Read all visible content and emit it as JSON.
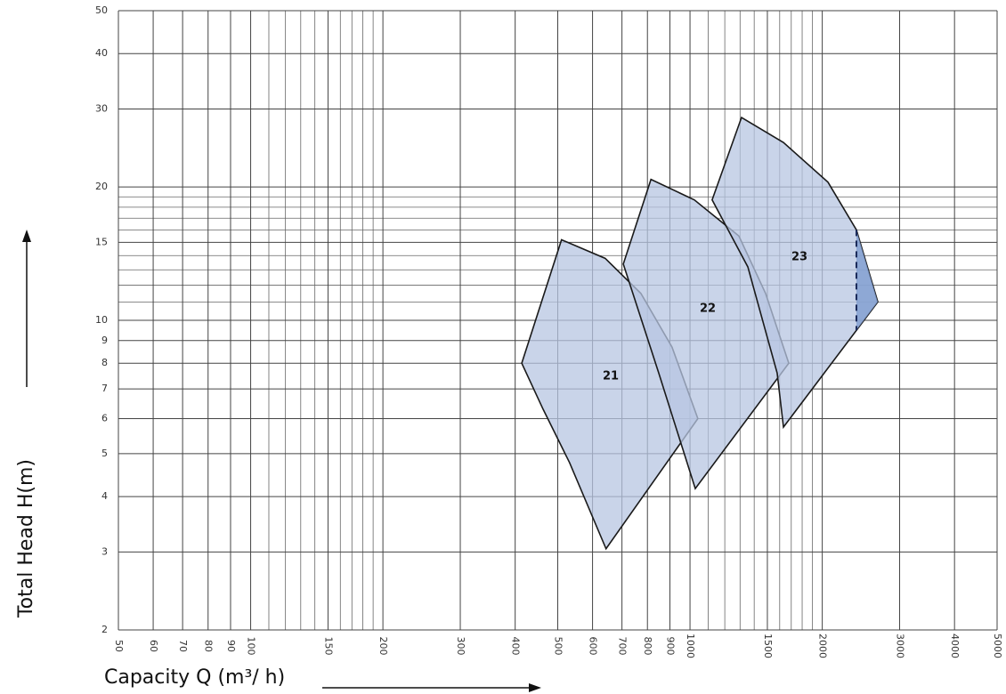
{
  "chart_data": {
    "type": "region",
    "xlabel": "Capacity Q (m³/ h)",
    "ylabel": "Total Head H(m)",
    "xlog": true,
    "ylog": true,
    "grid": true,
    "xlim": [
      50,
      5000
    ],
    "ylim": [
      2,
      50
    ],
    "xticks": [
      50,
      60,
      70,
      80,
      90,
      100,
      150,
      200,
      300,
      400,
      500,
      600,
      700,
      800,
      900,
      1000,
      1500,
      2000,
      3000,
      4000,
      5000
    ],
    "xminorticks": [
      110,
      120,
      130,
      140,
      160,
      170,
      180,
      190,
      1100,
      1200,
      1300,
      1400,
      1600,
      1700,
      1800,
      1900
    ],
    "yticks": [
      2,
      3,
      4,
      5,
      6,
      7,
      8,
      9,
      10,
      15,
      20,
      30,
      40,
      50
    ],
    "yminorticks": [
      11,
      12,
      13,
      14,
      16,
      17,
      18,
      19
    ],
    "color": "#b7c6e2",
    "series": [
      {
        "name": "21",
        "x": [
          414,
          510,
          641,
          773,
          910,
          1042,
          644,
          532,
          463
        ],
        "y": [
          8.0,
          15.2,
          13.8,
          11.5,
          8.7,
          6.0,
          3.05,
          4.77,
          6.3
        ]
      },
      {
        "name": "22",
        "x": [
          705,
          815,
          1023,
          1292,
          1486,
          1678,
          1028,
          849
        ],
        "y": [
          13.4,
          20.8,
          18.7,
          15.5,
          11.5,
          8.0,
          4.17,
          7.6
        ]
      },
      {
        "name": "23",
        "x": [
          1123,
          1310,
          1632,
          2061,
          2392,
          2676,
          1632,
          1579,
          1354
        ],
        "y": [
          18.7,
          28.7,
          25.2,
          20.5,
          16.0,
          11.0,
          5.74,
          7.6,
          13.2
        ]
      }
    ],
    "dashed_line": {
      "x": [
        2392,
        2392
      ],
      "y": [
        16.0,
        9.5
      ]
    }
  }
}
